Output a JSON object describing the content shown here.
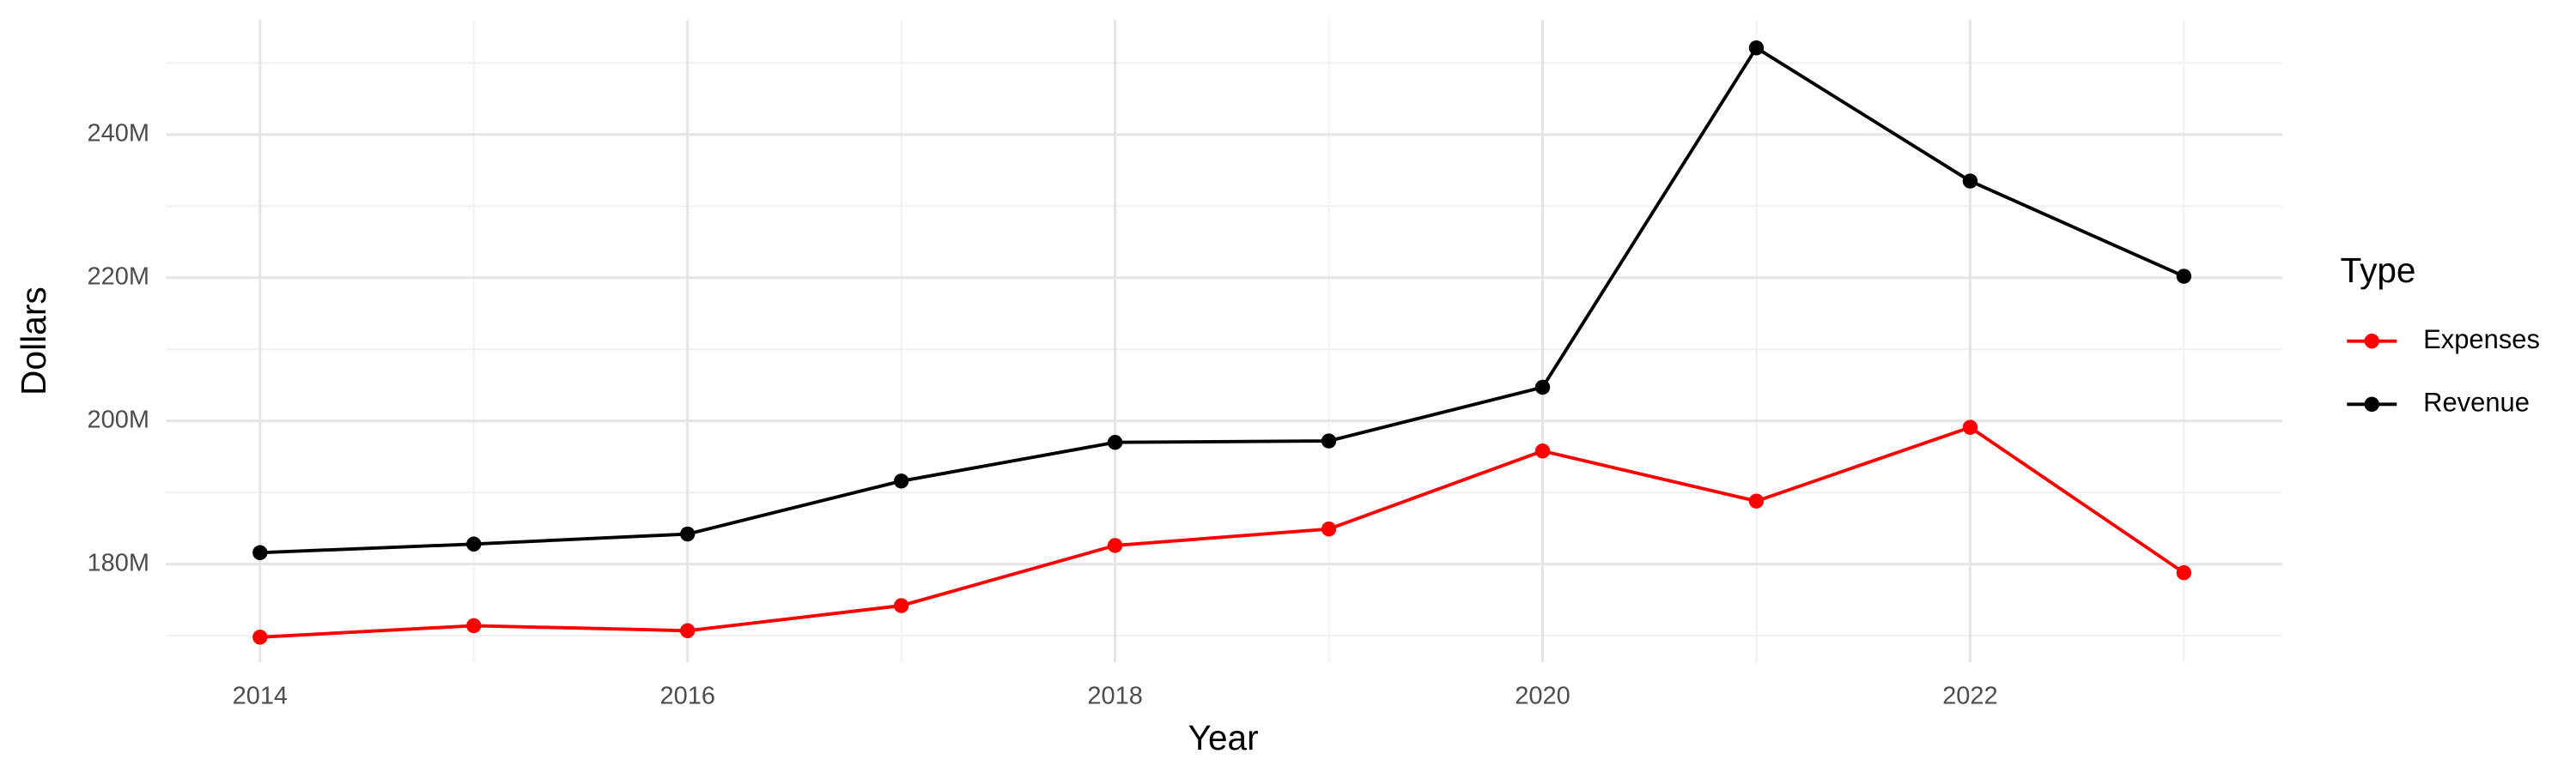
{
  "chart_data": {
    "type": "line",
    "x_label": "Year",
    "y_label": "Dollars",
    "legend_title": "Type",
    "legend_position": "right",
    "grid": true,
    "x": [
      2014,
      2015,
      2016,
      2017,
      2018,
      2019,
      2020,
      2021,
      2022,
      2023
    ],
    "series": [
      {
        "name": "Expenses",
        "color": "#ff0000",
        "values": [
          169800000,
          171400000,
          170700000,
          174200000,
          182600000,
          184900000,
          195800000,
          188800000,
          199100000,
          178800000
        ]
      },
      {
        "name": "Revenue",
        "color": "#000000",
        "values": [
          181600000,
          182800000,
          184200000,
          191600000,
          197000000,
          197200000,
          204700000,
          252100000,
          233500000,
          220200000
        ]
      }
    ],
    "xlim": [
      2013.56,
      2023.46
    ],
    "xticks": [
      2014,
      2016,
      2018,
      2020,
      2022
    ],
    "ylim": [
      166300000,
      256000000
    ],
    "yticks": [
      {
        "value": 180000000,
        "label": "180M"
      },
      {
        "value": 200000000,
        "label": "200M"
      },
      {
        "value": 220000000,
        "label": "220M"
      },
      {
        "value": 240000000,
        "label": "240M"
      }
    ]
  }
}
